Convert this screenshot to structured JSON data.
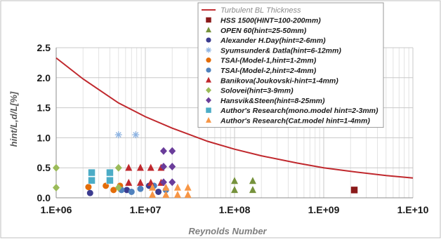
{
  "chart_data": {
    "type": "scatter",
    "xscale": "log",
    "xlim": [
      1000000,
      10000000000
    ],
    "ylim": [
      0,
      2.5
    ],
    "x_ticks": [
      1000000,
      10000000,
      100000000,
      1000000000,
      10000000000
    ],
    "x_tick_labels": [
      "1.E+06",
      "1.E+07",
      "1.E+08",
      "1.E+09",
      "1.E+10"
    ],
    "y_ticks": [
      0,
      0.5,
      1.0,
      1.5,
      2.0,
      2.5
    ],
    "y_tick_labels": [
      "0.0",
      "0.5",
      "1.0",
      "1.5",
      "2.0",
      "2.5"
    ],
    "xlabel": "Reynolds Number",
    "ylabel": "hint/L,d/L[%]",
    "grid": true,
    "legend_position": "top-right",
    "line_series": {
      "name": "Turbulent BL Thickness",
      "color": "#c0282d",
      "x": [
        1000000,
        2000000,
        5000000,
        10000000,
        20000000,
        50000000,
        100000000,
        200000000,
        500000000,
        1000000000,
        2000000000,
        5000000000,
        10000000000
      ],
      "y": [
        2.33,
        1.98,
        1.58,
        1.35,
        1.16,
        0.94,
        0.81,
        0.7,
        0.58,
        0.5,
        0.44,
        0.37,
        0.33
      ]
    },
    "series": [
      {
        "name": "HSS 1500(HINT=100-200mm)",
        "marker": "square",
        "color": "#8b1a1a",
        "x": [
          2200000000
        ],
        "y": [
          0.13
        ]
      },
      {
        "name": "OPEN 60(hint=25-50mm)",
        "marker": "triangle",
        "color": "#76923c",
        "x": [
          100000000,
          160000000,
          100000000,
          160000000
        ],
        "y": [
          0.28,
          0.28,
          0.13,
          0.13
        ]
      },
      {
        "name": "Alexander H.Day(hint=2-6mm)",
        "marker": "circle",
        "color": "#3b3b8f",
        "x": [
          2400000,
          6200000,
          11000000,
          14000000
        ],
        "y": [
          0.08,
          0.13,
          0.2,
          0.1
        ]
      },
      {
        "name": "Syumsunder& Datla(hint=6-12mm)",
        "marker": "star",
        "color": "#8db3e2",
        "x": [
          5000000,
          7800000
        ],
        "y": [
          1.05,
          1.05
        ]
      },
      {
        "name": "TSAI-(Model-1,hint=1-2mm)",
        "marker": "circle",
        "color": "#e36c09",
        "x": [
          2300000,
          3600000,
          4400000,
          5200000
        ],
        "y": [
          0.18,
          0.2,
          0.13,
          0.2
        ]
      },
      {
        "name": "TSAI-(Model-2,hint=2-4mm)",
        "marker": "circle",
        "color": "#4f81bd",
        "x": [
          5400000,
          7000000,
          8800000,
          12500000,
          17000000
        ],
        "y": [
          0.13,
          0.1,
          0.15,
          0.2,
          0.13
        ]
      },
      {
        "name": "Banikova(Joukovski-hint=1-4mm)",
        "marker": "triangle",
        "color": "#c0282d",
        "x": [
          6500000,
          8800000,
          11500000,
          15000000,
          6500000,
          8800000,
          11500000,
          15000000
        ],
        "y": [
          0.5,
          0.5,
          0.5,
          0.5,
          0.25,
          0.25,
          0.25,
          0.25
        ]
      },
      {
        "name": "Solovei(hint=3-9mm)",
        "marker": "diamond",
        "color": "#9bbb59",
        "x": [
          1000000,
          1000000,
          5000000,
          5000000
        ],
        "y": [
          0.5,
          0.17,
          0.5,
          0.17
        ]
      },
      {
        "name": "Hansvik&Steen(hint=8-25mm)",
        "marker": "diamond",
        "color": "#6a3d9a",
        "x": [
          16000000,
          20000000,
          16000000,
          20000000,
          16000000,
          20000000
        ],
        "y": [
          0.78,
          0.78,
          0.52,
          0.52,
          0.26,
          0.26
        ]
      },
      {
        "name": "Author's Research(mono.model hint=2-3mm)",
        "marker": "square",
        "color": "#4bacc6",
        "x": [
          2500000,
          2500000,
          4000000,
          4000000
        ],
        "y": [
          0.42,
          0.29,
          0.42,
          0.29
        ]
      },
      {
        "name": "Author's Research(Cat.model hint=1-4mm)",
        "marker": "triangle",
        "color": "#f79646",
        "x": [
          12000000,
          17000000,
          23000000,
          30000000,
          12000000,
          17000000,
          23000000,
          30000000
        ],
        "y": [
          0.17,
          0.17,
          0.17,
          0.17,
          0.05,
          0.05,
          0.05,
          0.05
        ]
      }
    ]
  }
}
